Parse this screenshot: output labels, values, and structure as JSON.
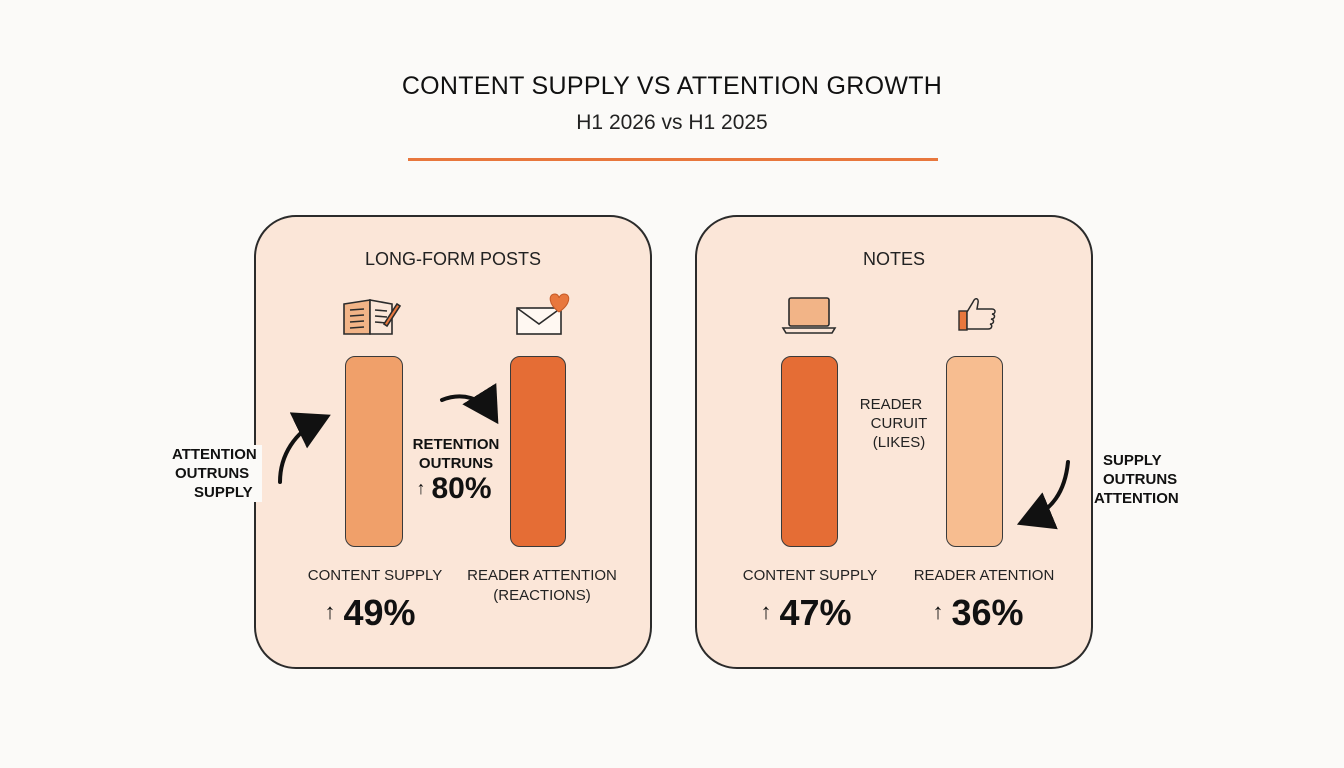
{
  "header": {
    "title": "CONTENT SUPPLY VS ATTENTION GROWTH",
    "subtitle": "H1 2026 vs H1 2025"
  },
  "colors": {
    "accent": "#e8773d",
    "panel_bg": "#fbe6d8",
    "long_supply": "#f0a06a",
    "long_attention": "#e56d35",
    "notes_supply": "#e56d35",
    "notes_attention": "#f7bd90"
  },
  "chart_data": [
    {
      "type": "bar",
      "title": "LONG-FORM POSTS",
      "categories": [
        "CONTENT SUPPLY",
        "READER ATTENTION (REACTIONS)"
      ],
      "values": [
        49,
        80
      ],
      "value_labels": [
        "49%",
        "80%"
      ],
      "icons": [
        "open-book-pen-icon",
        "envelope-heart-icon"
      ],
      "annotations": [
        "ATTENTION OUTRUNS SUPPLY",
        "RETENTION OUTRUNS"
      ]
    },
    {
      "type": "bar",
      "title": "NOTES",
      "categories": [
        "CONTENT SUPPLY",
        "READER ATENTION"
      ],
      "values": [
        47,
        36
      ],
      "value_labels": [
        "47%",
        "36%"
      ],
      "icons": [
        "laptop-icon",
        "thumbs-up-icon"
      ],
      "annotations": [
        "READER CURUIT (LIKES)",
        "SUPPLY OUTRUNS ATTENTION"
      ]
    }
  ],
  "long_form": {
    "title": "LONG-FORM POSTS",
    "supply_label": "CONTENT SUPPLY",
    "supply_pct": "49%",
    "attention_label_1": "READER ATTENTION",
    "attention_label_2": "(REACTIONS)",
    "attention_pct": "80%",
    "left_note_1": "ATTENTION",
    "left_note_2": "OUTRUNS",
    "left_note_3": "SUPPLY",
    "mid_note_1": "RETENTION",
    "mid_note_2": "OUTRUNS"
  },
  "notes": {
    "title": "NOTES",
    "supply_label": "CONTENT SUPPLY",
    "supply_pct": "47%",
    "attention_label": "READER ATENTION",
    "attention_pct": "36%",
    "mid_note_1": "READER",
    "mid_note_2": "CURUIT",
    "mid_note_3": "(LIKES)",
    "right_note_1": "SUPPLY",
    "right_note_2": "OUTRUNS",
    "right_note_3": "ATTENTION"
  },
  "arrow_glyph": "↑"
}
